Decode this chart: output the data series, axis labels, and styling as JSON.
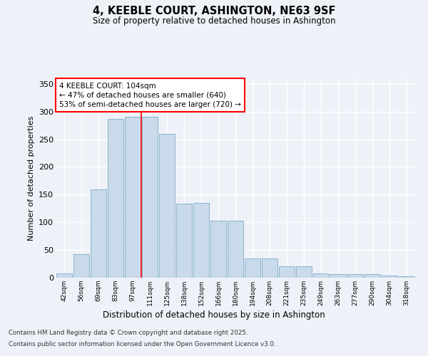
{
  "title": "4, KEEBLE COURT, ASHINGTON, NE63 9SF",
  "subtitle": "Size of property relative to detached houses in Ashington",
  "xlabel": "Distribution of detached houses by size in Ashington",
  "ylabel": "Number of detached properties",
  "categories": [
    "42sqm",
    "56sqm",
    "69sqm",
    "83sqm",
    "97sqm",
    "111sqm",
    "125sqm",
    "138sqm",
    "152sqm",
    "166sqm",
    "180sqm",
    "194sqm",
    "208sqm",
    "221sqm",
    "235sqm",
    "249sqm",
    "263sqm",
    "277sqm",
    "290sqm",
    "304sqm",
    "318sqm"
  ],
  "values": [
    8,
    42,
    160,
    287,
    290,
    290,
    260,
    134,
    135,
    103,
    103,
    35,
    35,
    20,
    20,
    8,
    7,
    7,
    6,
    4,
    3
  ],
  "bar_color": "#c9daea",
  "bar_edge_color": "#8ab4cc",
  "red_line_index": 5,
  "annotation_text": "4 KEEBLE COURT: 104sqm\n← 47% of detached houses are smaller (640)\n53% of semi-detached houses are larger (720) →",
  "annotation_box_color": "white",
  "annotation_box_edge_color": "red",
  "red_line_color": "red",
  "ylim": [
    0,
    360
  ],
  "yticks": [
    0,
    50,
    100,
    150,
    200,
    250,
    300,
    350
  ],
  "background_color": "#eef2f8",
  "grid_color": "white",
  "footer_line1": "Contains HM Land Registry data © Crown copyright and database right 2025.",
  "footer_line2": "Contains public sector information licensed under the Open Government Licence v3.0."
}
